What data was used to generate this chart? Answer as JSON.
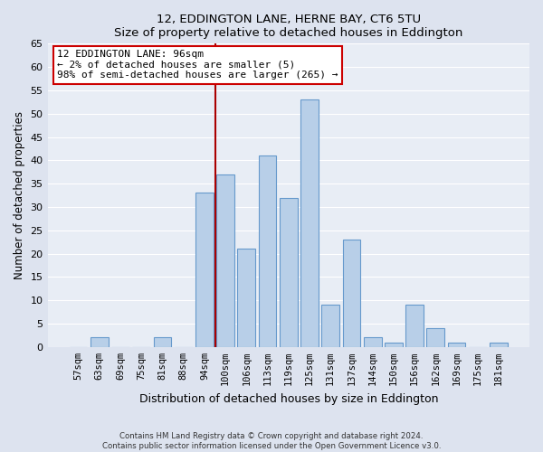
{
  "title": "12, EDDINGTON LANE, HERNE BAY, CT6 5TU",
  "subtitle": "Size of property relative to detached houses in Eddington",
  "xlabel": "Distribution of detached houses by size in Eddington",
  "ylabel": "Number of detached properties",
  "categories": [
    "57sqm",
    "63sqm",
    "69sqm",
    "75sqm",
    "81sqm",
    "88sqm",
    "94sqm",
    "100sqm",
    "106sqm",
    "113sqm",
    "119sqm",
    "125sqm",
    "131sqm",
    "137sqm",
    "144sqm",
    "150sqm",
    "156sqm",
    "162sqm",
    "169sqm",
    "175sqm",
    "181sqm"
  ],
  "values": [
    0,
    2,
    0,
    0,
    2,
    0,
    33,
    37,
    21,
    41,
    32,
    53,
    9,
    23,
    2,
    1,
    9,
    4,
    1,
    0,
    1
  ],
  "bar_color": "#b8cfe8",
  "bar_edge_color": "#6699cc",
  "vline_x": 6.5,
  "vline_color": "#aa0000",
  "annotation_title": "12 EDDINGTON LANE: 96sqm",
  "annotation_line1": "← 2% of detached houses are smaller (5)",
  "annotation_line2": "98% of semi-detached houses are larger (265) →",
  "annotation_box_color": "white",
  "annotation_box_edge": "#cc0000",
  "ylim": [
    0,
    65
  ],
  "yticks": [
    0,
    5,
    10,
    15,
    20,
    25,
    30,
    35,
    40,
    45,
    50,
    55,
    60,
    65
  ],
  "footer1": "Contains HM Land Registry data © Crown copyright and database right 2024.",
  "footer2": "Contains public sector information licensed under the Open Government Licence v3.0.",
  "bg_color": "#dde3ef",
  "plot_bg_color": "#e8edf5"
}
